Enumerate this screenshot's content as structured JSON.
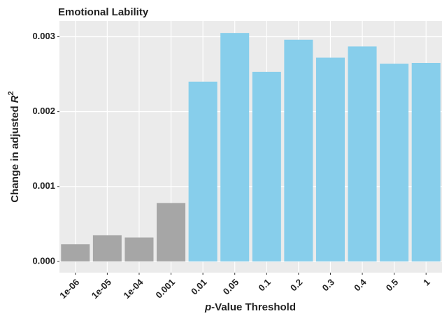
{
  "chart_data": {
    "type": "bar",
    "title": "Emotional Lability",
    "xlabel": [
      "p",
      "-Value Threshold"
    ],
    "ylabel": [
      "Change in adjusted ",
      "R",
      "2"
    ],
    "categories": [
      "1e-06",
      "1e-05",
      "1e-04",
      "0.001",
      "0.01",
      "0.05",
      "0.1",
      "0.2",
      "0.3",
      "0.4",
      "0.5",
      "1"
    ],
    "values": [
      0.00023,
      0.00035,
      0.00032,
      0.00078,
      0.0024,
      0.00305,
      0.00253,
      0.00296,
      0.00272,
      0.00287,
      0.00264,
      0.00265
    ],
    "colors": [
      "#a6a6a6",
      "#a6a6a6",
      "#a6a6a6",
      "#a6a6a6",
      "#87ceeb",
      "#87ceeb",
      "#87ceeb",
      "#87ceeb",
      "#87ceeb",
      "#87ceeb",
      "#87ceeb",
      "#87ceeb"
    ],
    "ylim": [
      -0.00015,
      0.00321
    ],
    "yticks": [
      {
        "value": 0,
        "label": "0.000"
      },
      0.001,
      0.002,
      0.003
    ],
    "grid": true
  }
}
